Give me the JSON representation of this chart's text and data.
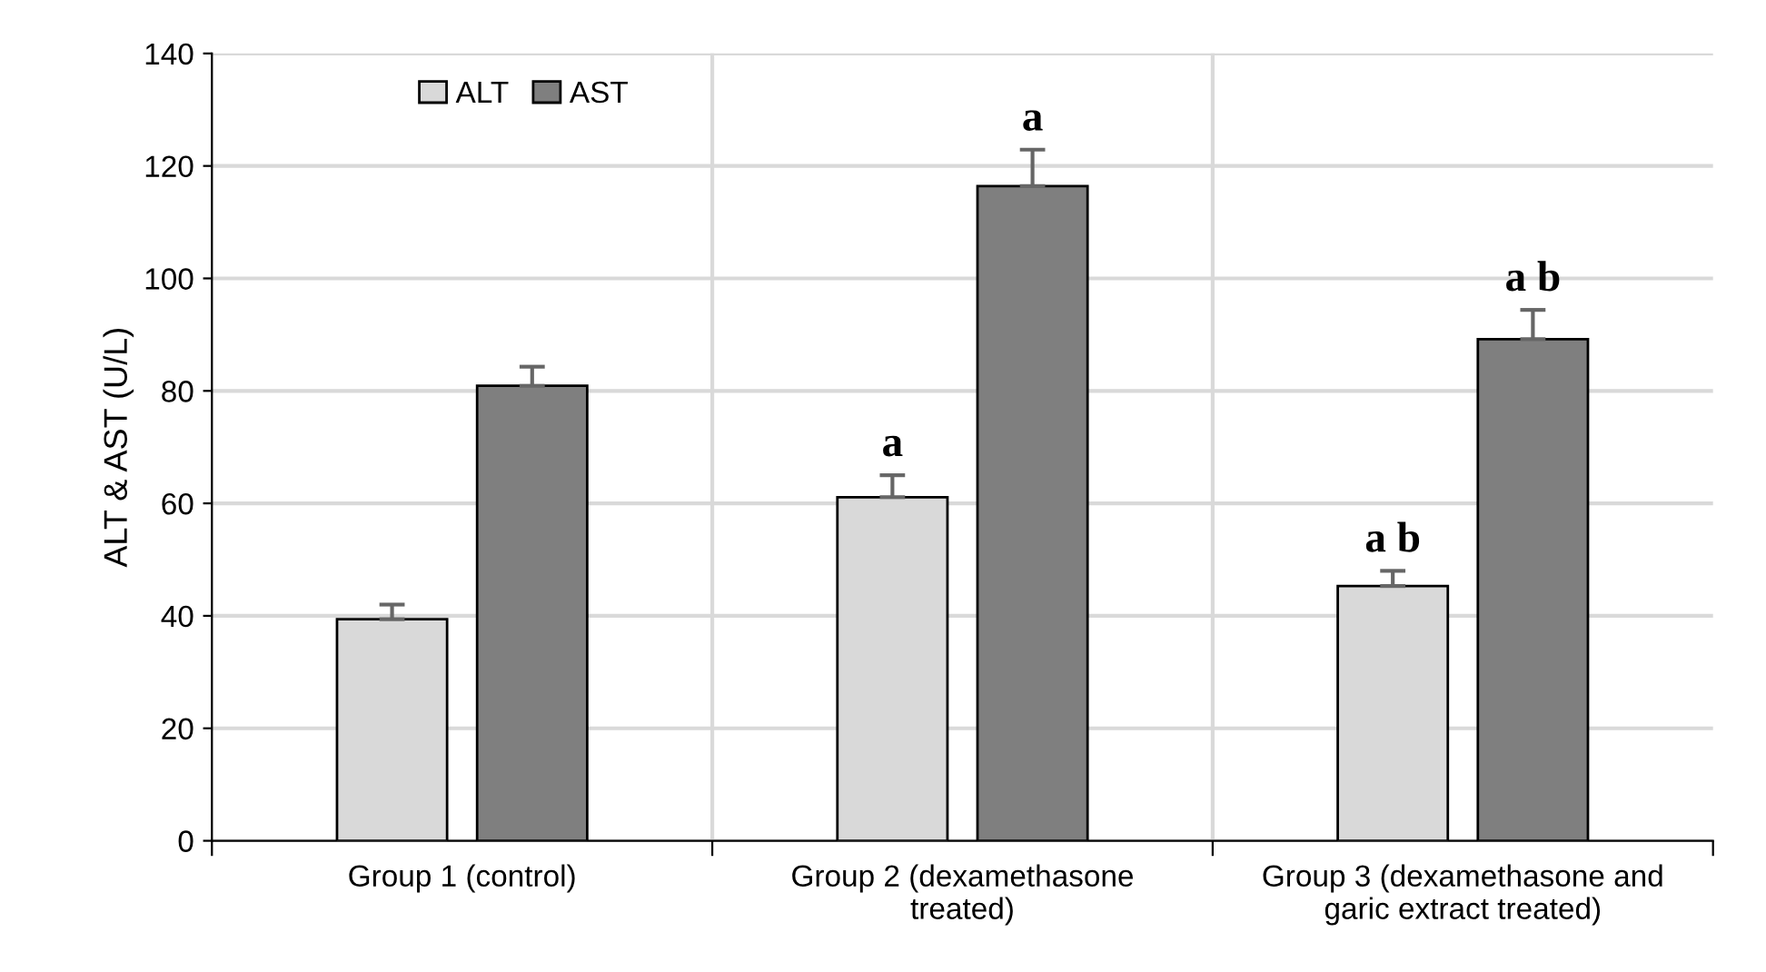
{
  "chart_data": {
    "type": "bar",
    "ylabel": "ALT & AST (U/L)",
    "categories": [
      "Group 1 (control)",
      "Group 2 (dexamethasone treated)",
      "Group 3 (dexamethasone and garic extract treated)"
    ],
    "series": [
      {
        "name": "ALT",
        "color": "#d9d9d9",
        "values": [
          39.4,
          61.1,
          45.3
        ],
        "errors": [
          2.6,
          3.9,
          2.7
        ],
        "value_labels": [
          null,
          "a",
          "a b"
        ]
      },
      {
        "name": "AST",
        "color": "#7f7f7f",
        "values": [
          80.9,
          116.4,
          89.2
        ],
        "errors": [
          3.4,
          6.5,
          5.2
        ],
        "value_labels": [
          null,
          "a",
          "a b"
        ]
      }
    ],
    "ylim": [
      0,
      140
    ],
    "yticks": [
      0,
      20,
      40,
      60,
      80,
      100,
      120,
      140
    ],
    "grid": true,
    "legend": "top left"
  }
}
